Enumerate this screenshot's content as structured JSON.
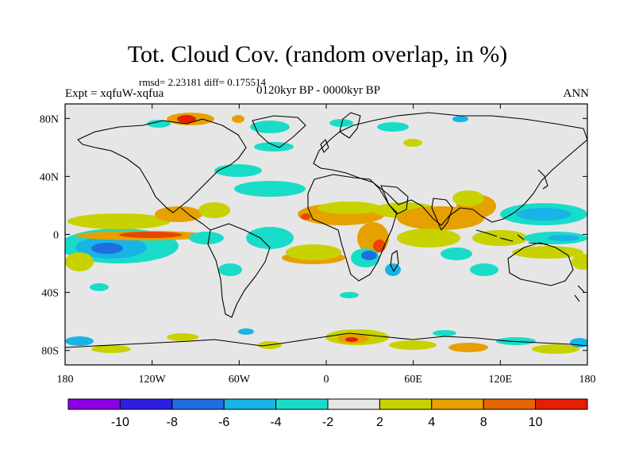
{
  "title": "Tot. Cloud Cov. (random overlap, in %)",
  "stats_line": "rmsd= 2.23181 diff= 0.175514",
  "experiment": "Expt = xqfuW-xqfua",
  "period": "0120kyr BP - 0000kyr BP",
  "season": "ANN",
  "axes": {
    "lon_ticks": [
      "180",
      "120W",
      "60W",
      "0",
      "60E",
      "120E",
      "180"
    ],
    "lat_ticks": [
      "80N",
      "40N",
      "0",
      "40S",
      "80S"
    ]
  },
  "colorbar": {
    "labels": [
      "-10",
      "-8",
      "-6",
      "-4",
      "-2",
      "2",
      "4",
      "8",
      "10"
    ],
    "colors": [
      "#8b00e8",
      "#2d1ee0",
      "#1e6ee0",
      "#19b4e6",
      "#19dcc8",
      "#e6e6e6",
      "#c8d200",
      "#e6a000",
      "#e66400",
      "#e61e00"
    ]
  },
  "colors": {
    "background": "#e6e6e6",
    "coast": "#000000"
  }
}
